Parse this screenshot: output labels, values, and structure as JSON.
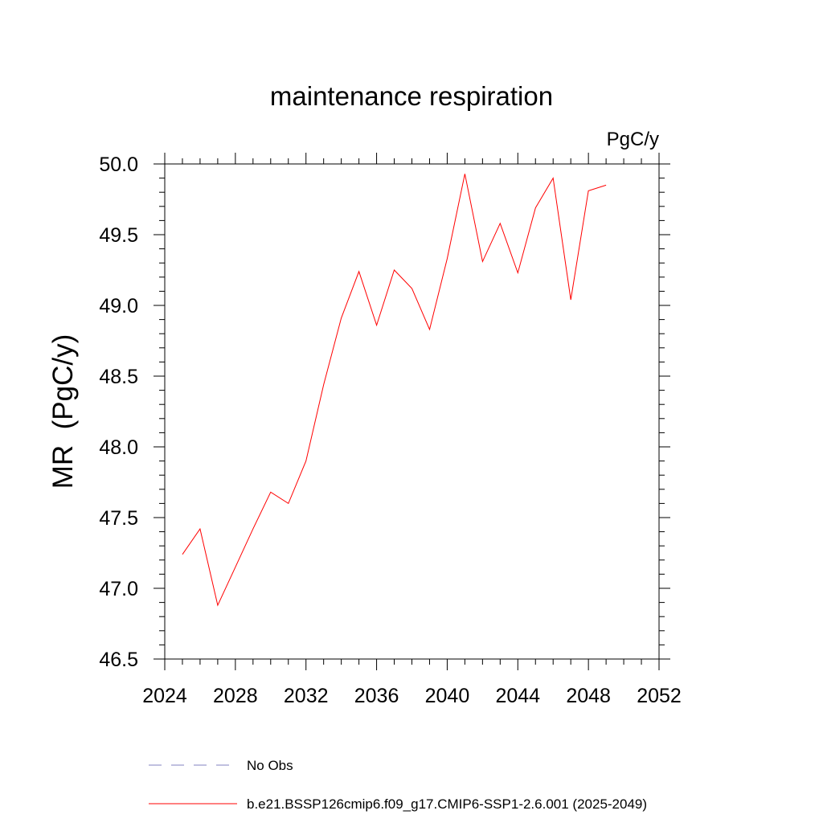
{
  "chart_data": {
    "type": "line",
    "title": "maintenance respiration",
    "units_label": "PgC/y",
    "ylabel": "MR  (PgC/y)",
    "xlabel": "",
    "xlim": [
      2024,
      2052
    ],
    "ylim": [
      46.5,
      50.0
    ],
    "x_ticks": [
      2024,
      2028,
      2032,
      2036,
      2040,
      2044,
      2048,
      2052
    ],
    "x_tick_labels": [
      "2024",
      "2028",
      "2032",
      "2036",
      "2040",
      "2044",
      "2048",
      "2052"
    ],
    "y_ticks": [
      46.5,
      47.0,
      47.5,
      48.0,
      48.5,
      49.0,
      49.5,
      50.0
    ],
    "y_tick_labels": [
      "46.5",
      "47.0",
      "47.5",
      "48.0",
      "48.5",
      "49.0",
      "49.5",
      "50.0"
    ],
    "grid": false,
    "legend_position": "bottom",
    "series": [
      {
        "name": "b.e21.BSSP126cmip6.f09_g17.CMIP6-SSP1-2.6.001 (2025-2049)",
        "color": "#ff0000",
        "style": "solid",
        "x": [
          2025,
          2026,
          2027,
          2028,
          2029,
          2030,
          2031,
          2032,
          2033,
          2034,
          2035,
          2036,
          2037,
          2038,
          2039,
          2040,
          2041,
          2042,
          2043,
          2044,
          2045,
          2046,
          2047,
          2048,
          2049
        ],
        "y": [
          47.24,
          47.42,
          46.88,
          47.15,
          47.42,
          47.68,
          47.6,
          47.9,
          48.44,
          48.91,
          49.24,
          48.86,
          49.25,
          49.12,
          48.83,
          49.33,
          49.93,
          49.31,
          49.58,
          49.23,
          49.69,
          49.9,
          49.04,
          49.81,
          49.85
        ]
      }
    ],
    "legend": [
      {
        "label": "No Obs",
        "color": "#8080c0",
        "style": "dashed"
      },
      {
        "label": "b.e21.BSSP126cmip6.f09_g17.CMIP6-SSP1-2.6.001 (2025-2049)",
        "color": "#ff0000",
        "style": "solid"
      }
    ]
  }
}
